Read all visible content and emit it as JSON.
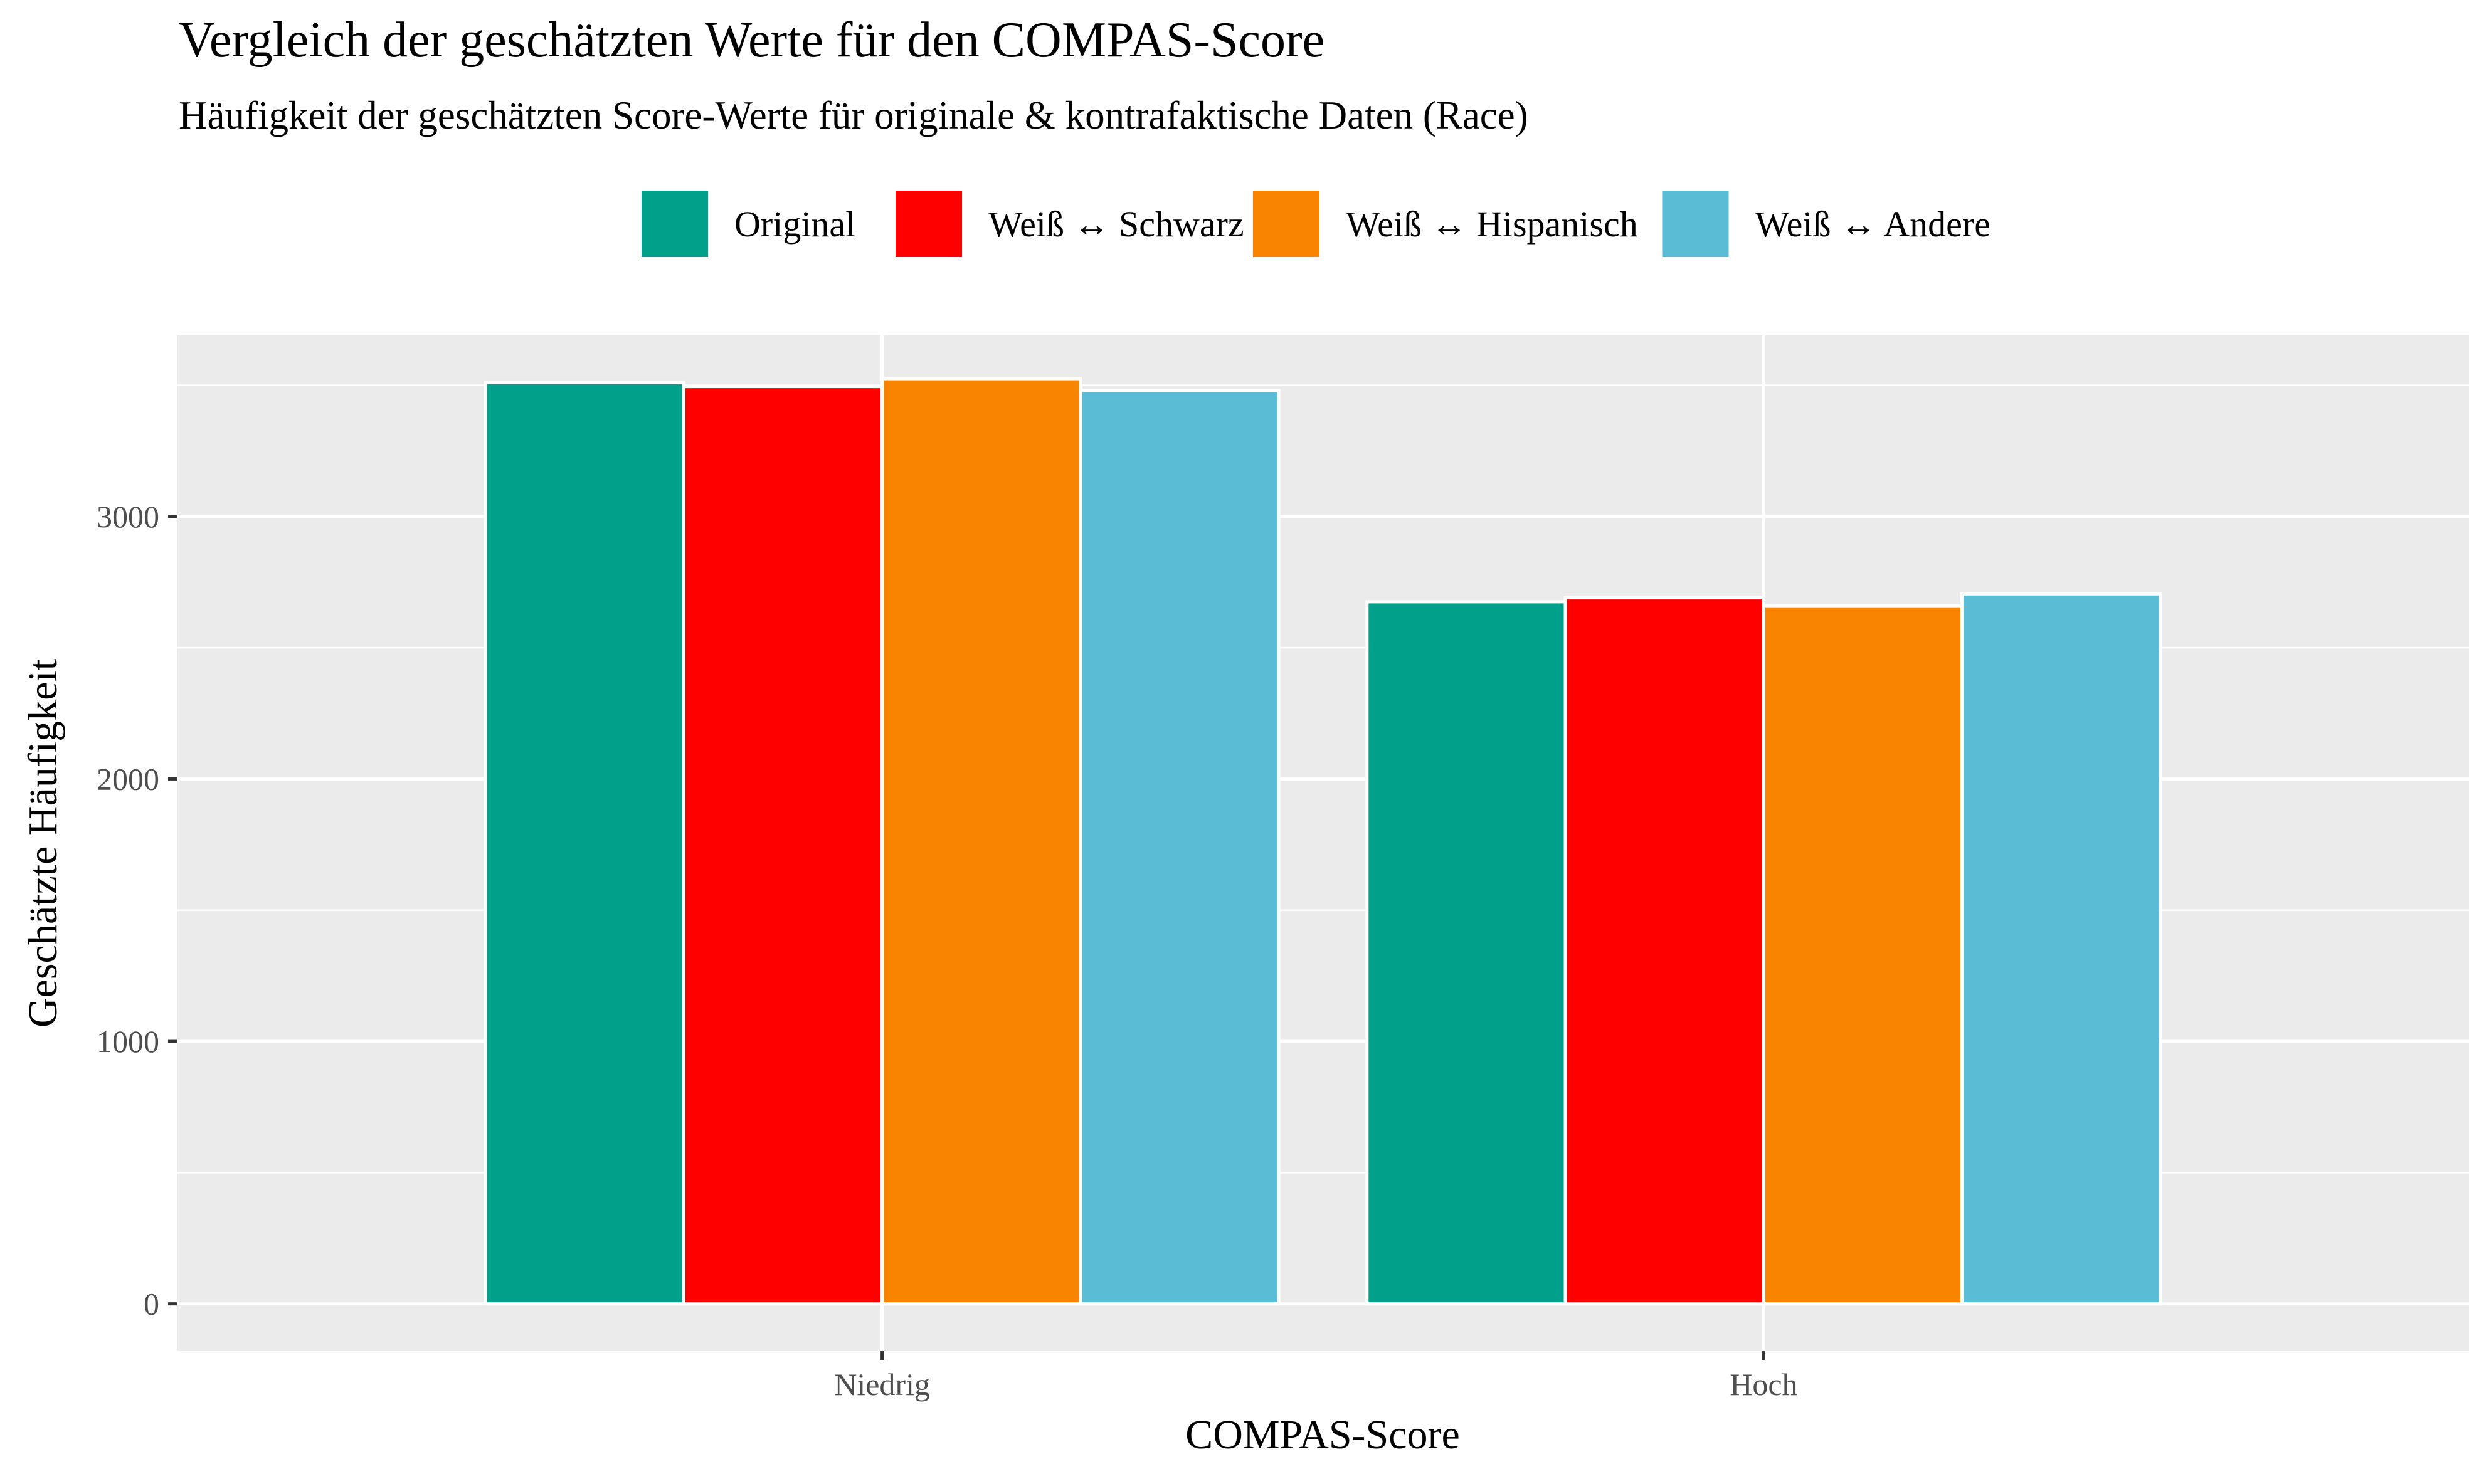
{
  "chart_data": {
    "type": "bar",
    "title": "Vergleich der geschätzten Werte für den COMPAS-Score",
    "subtitle": "Häufigkeit der geschätzten Score-Werte für originale & kontrafaktische Daten (Race)",
    "xlabel": "COMPAS-Score",
    "ylabel": "Geschätzte Häufigkeit",
    "categories": [
      "Niedrig",
      "Hoch"
    ],
    "series": [
      {
        "name": "Original",
        "color": "#00A08A",
        "values": [
          3510,
          2675
        ]
      },
      {
        "name": "Weiß ↔ Schwarz",
        "color": "#FF0000",
        "values": [
          3495,
          2690
        ]
      },
      {
        "name": "Weiß ↔ Hispanisch",
        "color": "#F98400",
        "values": [
          3525,
          2660
        ]
      },
      {
        "name": "Weiß ↔ Andere",
        "color": "#5BBCD6",
        "values": [
          3480,
          2705
        ]
      }
    ],
    "ylim": [
      -180,
      3690
    ],
    "yticks": [
      0,
      1000,
      2000,
      3000
    ],
    "grid": true,
    "legend_position": "top",
    "panel_background": "#EBEBEB",
    "grid_color": "#FFFFFF"
  }
}
